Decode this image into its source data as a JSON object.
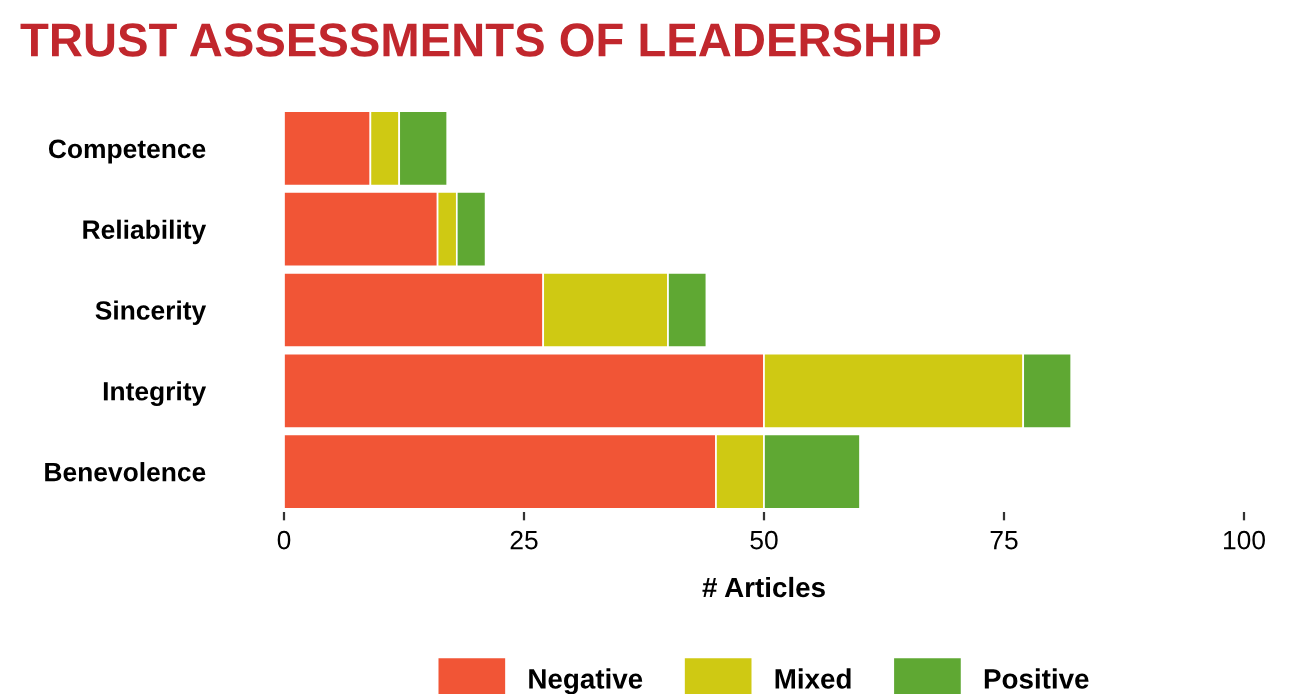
{
  "chart_data": {
    "type": "bar",
    "title": "TRUST ASSESSMENTS OF LEADERSHIP",
    "xlabel": "# Articles",
    "orientation": "horizontal",
    "stacked": true,
    "categories": [
      "Competence",
      "Reliability",
      "Sincerity",
      "Integrity",
      "Benevolence"
    ],
    "series": [
      {
        "name": "Negative",
        "color": "#f15536",
        "values": [
          9,
          16,
          27,
          50,
          45
        ]
      },
      {
        "name": "Mixed",
        "color": "#cfc913",
        "values": [
          3,
          2,
          13,
          27,
          5
        ]
      },
      {
        "name": "Positive",
        "color": "#5fa833",
        "values": [
          5,
          3,
          4,
          5,
          10
        ]
      }
    ],
    "xlim": [
      0,
      100
    ],
    "xticks": [
      0,
      25,
      50,
      75,
      100
    ],
    "grid": false,
    "legend": "bottom"
  }
}
